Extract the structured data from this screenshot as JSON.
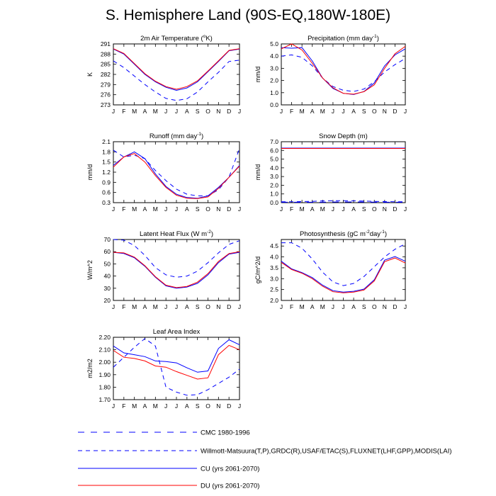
{
  "title": "S. Hemisphere Land (90S-EQ,180W-180E)",
  "colors": {
    "cmc": "#0000ff",
    "obs": "#0000ff",
    "cu": "#0000ff",
    "du": "#ff0000"
  },
  "legend": [
    {
      "label": "CMC 1980-1996",
      "color": "#0000ff",
      "dash": "long"
    },
    {
      "label": "Willmott-Matsuura(T,P),GRDC(R),USAF/ETAC(S),FLUXNET(LHF,GPP),MODIS(LAI)",
      "color": "#0000ff",
      "dash": "medium"
    },
    {
      "label": "CU (yrs 2061-2070)",
      "color": "#0000ff",
      "dash": "solid"
    },
    {
      "label": "DU (yrs 2061-2070)",
      "color": "#ff0000",
      "dash": "solid"
    }
  ],
  "chart_data": [
    {
      "type": "line",
      "title": "2m Air Temperature (",
      "title_sup": "o",
      "title_end": "K)",
      "ylabel": "K",
      "categories": [
        "J",
        "F",
        "M",
        "A",
        "M",
        "J",
        "J",
        "A",
        "S",
        "O",
        "N",
        "D",
        "J"
      ],
      "ylim": [
        273,
        291
      ],
      "yticks": [
        273,
        276,
        279,
        282,
        285,
        288,
        291
      ],
      "ytick_labels": [
        "273",
        "276",
        "279",
        "282",
        "285",
        "288",
        "291"
      ],
      "series": [
        {
          "key": "obs",
          "values": [
            286.0,
            284.0,
            281.5,
            279.0,
            276.8,
            274.9,
            274.3,
            274.8,
            276.8,
            279.8,
            282.6,
            285.8,
            286.2
          ]
        },
        {
          "key": "cu",
          "values": [
            289.5,
            288.0,
            285.0,
            282.0,
            279.8,
            278.2,
            277.3,
            278.0,
            279.8,
            282.8,
            285.8,
            289.0,
            289.5
          ]
        },
        {
          "key": "du",
          "values": [
            289.6,
            288.2,
            285.2,
            282.2,
            280.0,
            278.4,
            277.6,
            278.4,
            280.1,
            283.0,
            286.0,
            289.1,
            289.6
          ]
        }
      ]
    },
    {
      "type": "line",
      "title": "Precipitation (mm day",
      "title_sup": "-1",
      "title_end": ")",
      "ylabel": "mm/d",
      "categories": [
        "J",
        "F",
        "M",
        "A",
        "M",
        "J",
        "J",
        "A",
        "S",
        "O",
        "N",
        "D",
        "J"
      ],
      "ylim": [
        0,
        5
      ],
      "yticks": [
        0,
        1,
        2,
        3,
        4,
        5
      ],
      "ytick_labels": [
        "0.0",
        "1.0",
        "2.0",
        "3.0",
        "4.0",
        "5.0"
      ],
      "series": [
        {
          "key": "obs",
          "values": [
            4.0,
            4.1,
            3.9,
            3.2,
            2.2,
            1.5,
            1.2,
            1.1,
            1.3,
            1.9,
            2.7,
            3.3,
            3.8
          ]
        },
        {
          "key": "cu",
          "values": [
            4.7,
            4.65,
            4.7,
            3.6,
            2.2,
            1.35,
            0.95,
            0.85,
            1.1,
            1.8,
            3.2,
            4.1,
            4.6
          ]
        },
        {
          "key": "du",
          "values": [
            4.6,
            5.0,
            4.5,
            3.4,
            2.2,
            1.4,
            0.95,
            0.88,
            1.08,
            1.65,
            3.0,
            4.2,
            4.8
          ]
        }
      ]
    },
    {
      "type": "line",
      "title": "Runoff (mm day",
      "title_sup": "-1",
      "title_end": ")",
      "ylabel": "mm/d",
      "categories": [
        "J",
        "F",
        "M",
        "A",
        "M",
        "J",
        "J",
        "A",
        "S",
        "O",
        "N",
        "D",
        "J"
      ],
      "ylim": [
        0.3,
        2.1
      ],
      "yticks": [
        0.3,
        0.6,
        0.9,
        1.2,
        1.5,
        1.8,
        2.1
      ],
      "ytick_labels": [
        "0.3",
        "0.6",
        "0.9",
        "1.2",
        "1.5",
        "1.8",
        "2.1"
      ],
      "series": [
        {
          "key": "obs",
          "values": [
            1.85,
            1.65,
            1.7,
            1.6,
            1.25,
            0.95,
            0.7,
            0.55,
            0.5,
            0.5,
            0.68,
            1.05,
            1.9
          ]
        },
        {
          "key": "cu",
          "values": [
            1.4,
            1.65,
            1.8,
            1.6,
            1.15,
            0.78,
            0.55,
            0.45,
            0.43,
            0.5,
            0.75,
            1.05,
            1.4
          ]
        },
        {
          "key": "du",
          "values": [
            1.35,
            1.65,
            1.75,
            1.5,
            1.1,
            0.75,
            0.52,
            0.43,
            0.42,
            0.47,
            0.72,
            1.05,
            1.38
          ]
        }
      ]
    },
    {
      "type": "line",
      "title": "Snow Depth (m)",
      "title_sup": "",
      "title_end": "",
      "ylabel": "mm/d",
      "categories": [
        "J",
        "F",
        "M",
        "A",
        "M",
        "J",
        "J",
        "A",
        "S",
        "O",
        "N",
        "D",
        "J"
      ],
      "ylim": [
        0,
        7
      ],
      "yticks": [
        0,
        1,
        2,
        3,
        4,
        5,
        6,
        7
      ],
      "ytick_labels": [
        "0.0",
        "1.0",
        "2.0",
        "3.0",
        "4.0",
        "5.0",
        "6.0",
        "7.0"
      ],
      "series": [
        {
          "key": "cmc",
          "values": [
            0.05,
            0.05,
            0.05,
            0.05,
            0.06,
            0.07,
            0.08,
            0.08,
            0.07,
            0.06,
            0.05,
            0.05,
            0.05
          ]
        },
        {
          "key": "obs",
          "values": [
            0.1,
            0.1,
            0.12,
            0.15,
            0.2,
            0.22,
            0.22,
            0.2,
            0.18,
            0.15,
            0.12,
            0.1,
            0.1
          ]
        },
        {
          "key": "cu",
          "values": [
            6.27,
            6.27,
            6.27,
            6.27,
            6.27,
            6.27,
            6.27,
            6.27,
            6.27,
            6.27,
            6.27,
            6.27,
            6.27
          ]
        },
        {
          "key": "du",
          "values": [
            6.23,
            6.23,
            6.23,
            6.23,
            6.23,
            6.23,
            6.23,
            6.23,
            6.23,
            6.23,
            6.23,
            6.23,
            6.23
          ]
        }
      ]
    },
    {
      "type": "line",
      "title": "Latent Heat Flux (W m",
      "title_sup": "-2",
      "title_end": ")",
      "ylabel": "W/m^2",
      "categories": [
        "J",
        "F",
        "M",
        "A",
        "M",
        "J",
        "J",
        "A",
        "S",
        "O",
        "N",
        "D",
        "J"
      ],
      "ylim": [
        20,
        70
      ],
      "yticks": [
        20,
        30,
        40,
        50,
        60,
        70
      ],
      "ytick_labels": [
        "20",
        "30",
        "40",
        "50",
        "60",
        "70"
      ],
      "series": [
        {
          "key": "obs",
          "values": [
            70.0,
            69.5,
            65.0,
            57.0,
            47.0,
            41.0,
            39.0,
            40.0,
            44.0,
            51.0,
            59.0,
            66.0,
            69.0
          ]
        },
        {
          "key": "cu",
          "values": [
            59.5,
            58.5,
            55.0,
            48.0,
            39.0,
            32.0,
            30.0,
            31.0,
            34.0,
            41.0,
            51.0,
            58.0,
            59.5
          ]
        },
        {
          "key": "du",
          "values": [
            59.5,
            59.0,
            55.5,
            48.5,
            39.5,
            32.5,
            30.5,
            31.5,
            35.0,
            42.0,
            52.0,
            58.5,
            60.0
          ]
        }
      ]
    },
    {
      "type": "line",
      "title": "Photosynthesis (gC m",
      "title_sup": "-2",
      "title_end": "day",
      "title_sup2": "-1",
      "title_end2": ")",
      "ylabel": "gC/m^2/d",
      "categories": [
        "J",
        "F",
        "M",
        "A",
        "M",
        "J",
        "J",
        "A",
        "S",
        "O",
        "N",
        "D",
        "J"
      ],
      "ylim": [
        2.0,
        4.8
      ],
      "yticks": [
        2.0,
        2.5,
        3.0,
        3.5,
        4.0,
        4.5
      ],
      "ytick_labels": [
        "2.0",
        "2.5",
        "3.0",
        "3.5",
        "4.0",
        "4.5"
      ],
      "series": [
        {
          "key": "obs",
          "values": [
            4.65,
            4.65,
            4.4,
            3.9,
            3.3,
            2.85,
            2.68,
            2.78,
            3.1,
            3.55,
            4.0,
            4.35,
            4.6
          ]
        },
        {
          "key": "cu",
          "values": [
            3.8,
            3.45,
            3.28,
            3.05,
            2.7,
            2.45,
            2.38,
            2.42,
            2.52,
            2.95,
            3.85,
            4.02,
            3.8
          ]
        },
        {
          "key": "du",
          "values": [
            3.75,
            3.42,
            3.25,
            3.0,
            2.65,
            2.4,
            2.35,
            2.38,
            2.48,
            2.9,
            3.78,
            3.95,
            3.72
          ]
        }
      ]
    },
    {
      "type": "line",
      "title": "Leaf Area Index",
      "title_sup": "",
      "title_end": "",
      "ylabel": "m2/m2",
      "categories": [
        "J",
        "F",
        "M",
        "A",
        "M",
        "J",
        "J",
        "A",
        "S",
        "O",
        "N",
        "D",
        "J"
      ],
      "ylim": [
        1.7,
        2.2
      ],
      "yticks": [
        1.7,
        1.8,
        1.9,
        2.0,
        2.1,
        2.2
      ],
      "ytick_labels": [
        "1.70",
        "1.80",
        "1.90",
        "2.00",
        "2.10",
        "2.20"
      ],
      "series": [
        {
          "key": "obs",
          "values": [
            1.96,
            2.04,
            2.12,
            2.19,
            2.13,
            1.8,
            1.76,
            1.735,
            1.74,
            1.78,
            1.83,
            1.88,
            1.945
          ]
        },
        {
          "key": "cu",
          "values": [
            2.13,
            2.075,
            2.06,
            2.045,
            2.01,
            2.005,
            1.995,
            1.955,
            1.92,
            1.93,
            2.11,
            2.18,
            2.14
          ]
        },
        {
          "key": "du",
          "values": [
            2.095,
            2.04,
            2.03,
            2.01,
            1.97,
            1.96,
            1.925,
            1.895,
            1.865,
            1.875,
            2.06,
            2.135,
            2.1
          ]
        }
      ]
    }
  ]
}
